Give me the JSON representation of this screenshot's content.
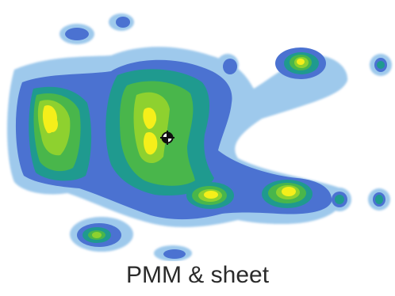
{
  "figure": {
    "caption": "PMM & sheet",
    "colors": {
      "background": "#ffffff",
      "outer_halo": "#9ec9ec",
      "low_pressure": "#4b72d1",
      "medium_low": "#1f9a8f",
      "medium": "#49b64b",
      "medium_high": "#8ed12f",
      "high": "#f5ef1a",
      "marker": "#111111"
    }
  }
}
